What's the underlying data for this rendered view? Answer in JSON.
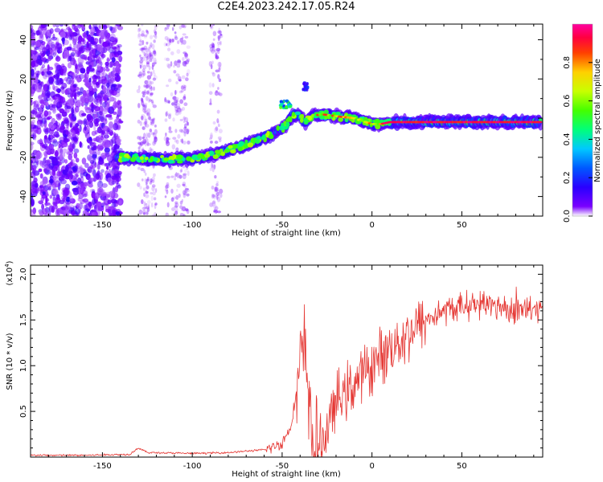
{
  "title": "C2E4.2023.242.17.05.R24",
  "chart_data": [
    {
      "type": "heatmap",
      "xlabel": "Height of straight line (km)",
      "ylabel": "Frequency (Hz)",
      "xlim": [
        -190,
        95
      ],
      "ylim": [
        -50,
        48
      ],
      "x_ticks": [
        -150,
        -100,
        -50,
        0,
        50
      ],
      "y_ticks": [
        -40,
        -20,
        0,
        20,
        40
      ],
      "colorbar": {
        "label": "Normalized spectral amplitude",
        "range": [
          0,
          1
        ],
        "ticks": [
          0.0,
          0.2,
          0.4,
          0.6,
          0.8
        ],
        "tick_labels": [
          "0.0",
          "0.2",
          "0.4",
          "0.6",
          "0.8"
        ]
      },
      "ridge": {
        "x": [
          -140,
          -120,
          -105,
          -95,
          -85,
          -75,
          -65,
          -55,
          -48,
          -44,
          -40,
          -37,
          -33,
          -28,
          -20,
          -10,
          0,
          5,
          10,
          30,
          50,
          70,
          90
        ],
        "frequency": [
          -20,
          -21,
          -21,
          -20,
          -18,
          -15,
          -12,
          -8,
          -4,
          2,
          1,
          -2,
          1,
          2,
          1,
          0,
          -3,
          -3,
          -2,
          -2,
          -2,
          -2,
          -2
        ]
      }
    },
    {
      "type": "line",
      "xlabel": "Height of straight line (km)",
      "ylabel": "SNR (10 * v/v)",
      "y_multiplier": "(x10",
      "y_multiplier_exp": "4",
      "xlim": [
        -190,
        95
      ],
      "ylim": [
        0,
        2.1
      ],
      "x_ticks": [
        -150,
        -100,
        -50,
        0,
        50
      ],
      "y_ticks": [
        0.5,
        1.0,
        1.5,
        2.0
      ],
      "y_tick_labels": [
        "0.5",
        "1.0",
        "1.5",
        "2.0"
      ],
      "color": "#e53935",
      "series": [
        {
          "x": [
            -190,
            -160,
            -135,
            -130,
            -125,
            -100,
            -80,
            -60,
            -50,
            -45,
            -40,
            -38,
            -36,
            -34,
            -32,
            -30,
            -25,
            -20,
            -10,
            0,
            10,
            20,
            30,
            40,
            50,
            60,
            70,
            80,
            90,
            95
          ],
          "values": [
            0.02,
            0.02,
            0.03,
            0.1,
            0.05,
            0.04,
            0.05,
            0.08,
            0.15,
            0.35,
            0.95,
            1.2,
            0.9,
            0.35,
            0.05,
            0.08,
            0.3,
            0.6,
            0.8,
            1.0,
            1.2,
            1.35,
            1.5,
            1.6,
            1.65,
            1.68,
            1.65,
            1.62,
            1.6,
            1.6
          ]
        }
      ]
    }
  ]
}
